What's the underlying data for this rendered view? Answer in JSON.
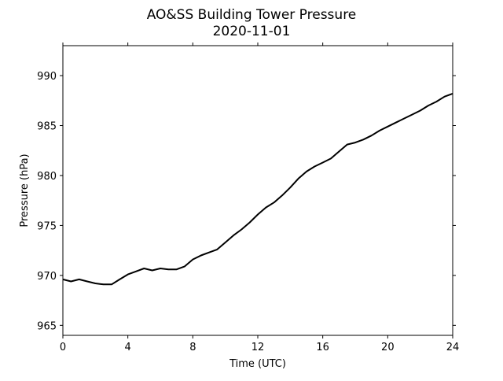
{
  "chart_data": {
    "type": "line",
    "title": "AO&SS Building Tower Pressure",
    "subtitle": "2020-11-01",
    "xlabel": "Time (UTC)",
    "ylabel": "Pressure (hPa)",
    "xlim": [
      0,
      24
    ],
    "ylim": [
      964,
      993
    ],
    "xticks": [
      0,
      4,
      8,
      12,
      16,
      20,
      24
    ],
    "xtick_labels": [
      "0",
      "4",
      "8",
      "12",
      "16",
      "20",
      "24"
    ],
    "yticks": [
      965,
      970,
      975,
      980,
      985,
      990
    ],
    "ytick_labels": [
      "965",
      "970",
      "975",
      "980",
      "985",
      "990"
    ],
    "grid": false,
    "legend": "none",
    "line_color": "#000000",
    "series": [
      {
        "x": [
          0,
          0.5,
          1,
          1.5,
          2,
          2.5,
          3,
          3.5,
          4,
          4.5,
          5,
          5.5,
          6,
          6.5,
          7,
          7.5,
          8,
          8.5,
          9,
          9.5,
          10,
          10.5,
          11,
          11.5,
          12,
          12.5,
          13,
          13.5,
          14,
          14.5,
          15,
          15.5,
          16,
          16.5,
          17,
          17.5,
          18,
          18.5,
          19,
          19.5,
          20,
          20.5,
          21,
          21.5,
          22,
          22.5,
          23,
          23.5,
          24
        ],
        "y": [
          969.6,
          969.4,
          969.6,
          969.4,
          969.2,
          969.1,
          969.1,
          969.6,
          970.1,
          970.4,
          970.7,
          970.5,
          970.7,
          970.6,
          970.6,
          970.9,
          971.6,
          972.0,
          972.3,
          972.6,
          973.3,
          974.0,
          974.6,
          975.3,
          976.1,
          976.8,
          977.3,
          978.0,
          978.8,
          979.7,
          980.4,
          980.9,
          981.3,
          981.7,
          982.4,
          983.1,
          983.3,
          983.6,
          984.0,
          984.5,
          984.9,
          985.3,
          985.7,
          986.1,
          986.5,
          987.0,
          987.4,
          987.9,
          988.2
        ]
      }
    ]
  }
}
